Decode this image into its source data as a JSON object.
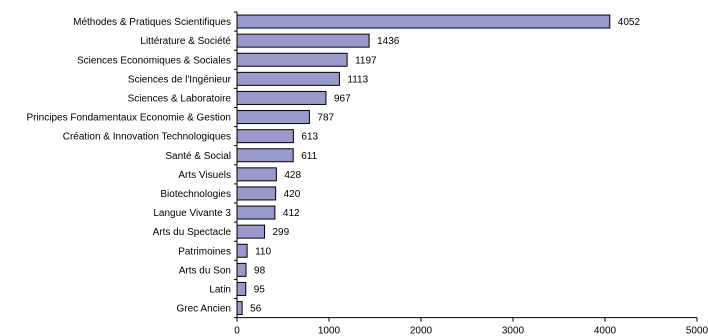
{
  "chart_data": {
    "type": "bar",
    "orientation": "horizontal",
    "categories": [
      "Méthodes & Pratiques Scientifiques",
      "Littérature & Société",
      "Sciences Economiques & Sociales",
      "Sciences de l'Ingénieur",
      "Sciences & Laboratoire",
      "Principes Fondamentaux Economie & Gestion",
      "Création & Innovation Technologiques",
      "Santé & Social",
      "Arts Visuels",
      "Biotechnologies",
      "Langue Vivante 3",
      "Arts du Spectacle",
      "Patrimoines",
      "Arts du Son",
      "Latin",
      "Grec Ancien"
    ],
    "values": [
      4052,
      1436,
      1197,
      1113,
      967,
      787,
      613,
      611,
      428,
      420,
      412,
      299,
      110,
      98,
      95,
      56
    ],
    "title": "",
    "xlabel": "",
    "ylabel": "",
    "xlim": [
      0,
      5000
    ],
    "xticks": [
      0,
      1000,
      2000,
      3000,
      4000,
      5000
    ],
    "grid": false,
    "legend": "none",
    "bar_color": "#9999cc",
    "bar_stroke": "#000000",
    "data_labels": true
  }
}
